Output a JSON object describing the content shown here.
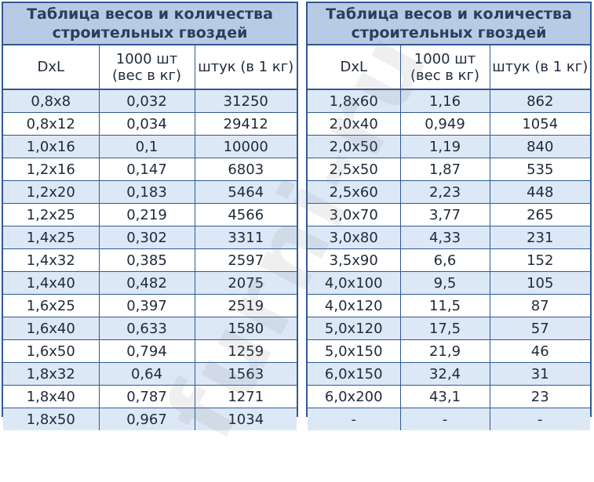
{
  "left": {
    "title_line1": "Таблица весов и количества",
    "title_line2": "строительных гвоздей",
    "headers": [
      "DxL",
      "1000 шт (вес в кг)",
      "штук (в 1 кг)"
    ],
    "rows": [
      [
        "0,8x8",
        "0,032",
        "31250"
      ],
      [
        "0,8x12",
        "0,034",
        "29412"
      ],
      [
        "1,0x16",
        "0,1",
        "10000"
      ],
      [
        "1,2x16",
        "0,147",
        "6803"
      ],
      [
        "1,2x20",
        "0,183",
        "5464"
      ],
      [
        "1,2x25",
        "0,219",
        "4566"
      ],
      [
        "1,4x25",
        "0,302",
        "3311"
      ],
      [
        "1,4x32",
        "0,385",
        "2597"
      ],
      [
        "1,4x40",
        "0,482",
        "2075"
      ],
      [
        "1,6x25",
        "0,397",
        "2519"
      ],
      [
        "1,6x40",
        "0,633",
        "1580"
      ],
      [
        "1,6x50",
        "0,794",
        "1259"
      ],
      [
        "1,8x32",
        "0,64",
        "1563"
      ],
      [
        "1,8x40",
        "0,787",
        "1271"
      ],
      [
        "1,8x50",
        "0,967",
        "1034"
      ]
    ]
  },
  "right": {
    "title_line1": "Таблица весов и количества",
    "title_line2": "строительных гвоздей",
    "headers": [
      "DxL",
      "1000 шт (вес в кг)",
      "штук (в 1 кг)"
    ],
    "rows": [
      [
        "1,8x60",
        "1,16",
        "862"
      ],
      [
        "2,0x40",
        "0,949",
        "1054"
      ],
      [
        "2,0x50",
        "1,19",
        "840"
      ],
      [
        "2,5x50",
        "1,87",
        "535"
      ],
      [
        "2,5x60",
        "2,23",
        "448"
      ],
      [
        "3,0x70",
        "3,77",
        "265"
      ],
      [
        "3,0x80",
        "4,33",
        "231"
      ],
      [
        "3,5x90",
        "6,6",
        "152"
      ],
      [
        "4,0x100",
        "9,5",
        "105"
      ],
      [
        "4,0x120",
        "11,5",
        "87"
      ],
      [
        "5,0x120",
        "17,5",
        "57"
      ],
      [
        "5,0x150",
        "21,9",
        "46"
      ],
      [
        "6,0x150",
        "32,4",
        "31"
      ],
      [
        "6,0x200",
        "43,1",
        "23"
      ],
      [
        "-",
        "-",
        "-"
      ]
    ]
  },
  "watermark": "furni-ru",
  "colors": {
    "border": "#2f5a94",
    "title_bg": "#b8cbe4",
    "stripe_bg": "#dde8f6",
    "text": "#1f2a3a"
  }
}
